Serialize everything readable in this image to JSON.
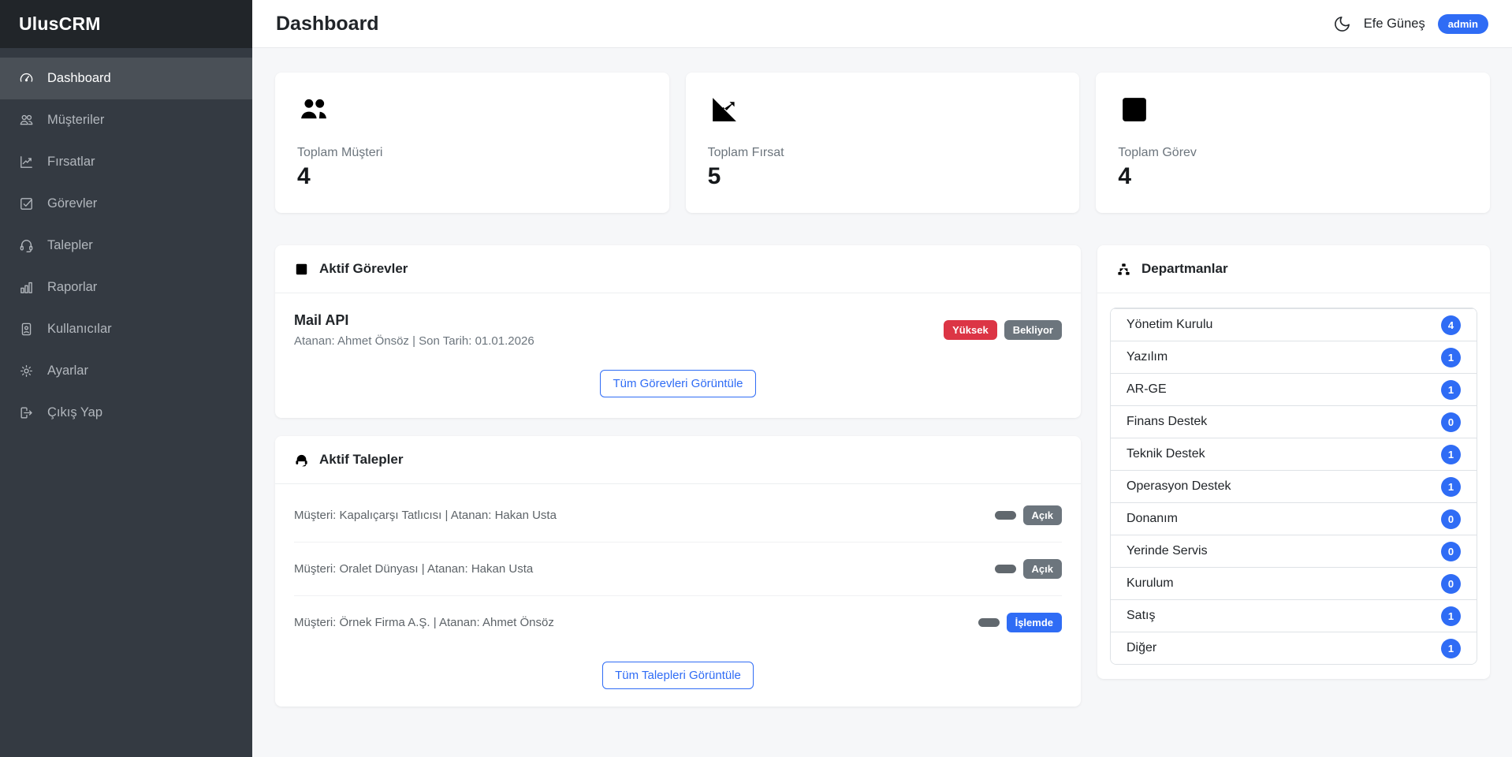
{
  "colors": {
    "primary": "#2f6cf5",
    "danger": "#dc3545",
    "secondary": "#6c757d",
    "sidebar_bg": "#343a42",
    "brand_bg": "#212529"
  },
  "app": {
    "brand": "UlusCRM"
  },
  "sidebar": {
    "items": [
      {
        "slug": "dashboard",
        "label": "Dashboard",
        "icon": "speedometer-icon",
        "class": "active"
      },
      {
        "slug": "musteriler",
        "label": "Müşteriler",
        "icon": "people-icon",
        "class": ""
      },
      {
        "slug": "firsatlar",
        "label": "Fırsatlar",
        "icon": "graph-up-icon",
        "class": ""
      },
      {
        "slug": "gorevler",
        "label": "Görevler",
        "icon": "check-square-icon",
        "class": ""
      },
      {
        "slug": "talepler",
        "label": "Talepler",
        "icon": "headset-icon",
        "class": ""
      },
      {
        "slug": "raporlar",
        "label": "Raporlar",
        "icon": "bar-chart-icon",
        "class": ""
      },
      {
        "slug": "kullanicilar",
        "label": "Kullanıcılar",
        "icon": "person-badge-icon",
        "class": ""
      },
      {
        "slug": "ayarlar",
        "label": "Ayarlar",
        "icon": "gear-icon",
        "class": ""
      },
      {
        "slug": "cikis-yap",
        "label": "Çıkış Yap",
        "icon": "logout-icon",
        "class": ""
      }
    ]
  },
  "header": {
    "title": "Dashboard",
    "user_name": "Efe Güneş",
    "user_role": "admin"
  },
  "stats": [
    {
      "slug": "toplam-musteri",
      "icon": "people-icon",
      "label": "Toplam Müşteri",
      "value": "4"
    },
    {
      "slug": "toplam-firsat",
      "icon": "graph-up-icon",
      "label": "Toplam Fırsat",
      "value": "5"
    },
    {
      "slug": "toplam-gorev",
      "icon": "check-square-icon",
      "label": "Toplam Görev",
      "value": "4"
    }
  ],
  "tasks_panel": {
    "title": "Aktif Görevler",
    "items": [
      {
        "slug": "mail-api",
        "title": "Mail API",
        "meta": "Atanan: Ahmet Önsöz | Son Tarih: 01.01.2026",
        "priority": "Yüksek",
        "priority_class": "badge-red",
        "status": "Bekliyor",
        "status_class": "badge-gray"
      }
    ],
    "button": "Tüm Görevleri Görüntüle"
  },
  "requests_panel": {
    "title": "Aktif Talepler",
    "items": [
      {
        "slug": "kapalicarsi",
        "meta": "Müşteri: Kapalıçarşı Tatlıcısı | Atanan: Hakan Usta",
        "status": "Açık",
        "status_class": "badge-gray"
      },
      {
        "slug": "oralet",
        "meta": "Müşteri: Oralet Dünyası | Atanan: Hakan Usta",
        "status": "Açık",
        "status_class": "badge-gray"
      },
      {
        "slug": "ornek-firma",
        "meta": "Müşteri: Örnek Firma A.Ş. | Atanan: Ahmet Önsöz",
        "status": "İşlemde",
        "status_class": "badge-blue"
      }
    ],
    "button": "Tüm Talepleri Görüntüle"
  },
  "departments_panel": {
    "title": "Departmanlar",
    "items": [
      {
        "slug": "yonetim-kurulu",
        "name": "Yönetim Kurulu",
        "count": "4"
      },
      {
        "slug": "yazilim",
        "name": "Yazılım",
        "count": "1"
      },
      {
        "slug": "ar-ge",
        "name": "AR-GE",
        "count": "1"
      },
      {
        "slug": "finans-destek",
        "name": "Finans Destek",
        "count": "0"
      },
      {
        "slug": "teknik-destek",
        "name": "Teknik Destek",
        "count": "1"
      },
      {
        "slug": "operasyon-destek",
        "name": "Operasyon Destek",
        "count": "1"
      },
      {
        "slug": "donanim",
        "name": "Donanım",
        "count": "0"
      },
      {
        "slug": "yerinde-servis",
        "name": "Yerinde Servis",
        "count": "0"
      },
      {
        "slug": "kurulum",
        "name": "Kurulum",
        "count": "0"
      },
      {
        "slug": "satis",
        "name": "Satış",
        "count": "1"
      },
      {
        "slug": "diger",
        "name": "Diğer",
        "count": "1"
      }
    ]
  }
}
